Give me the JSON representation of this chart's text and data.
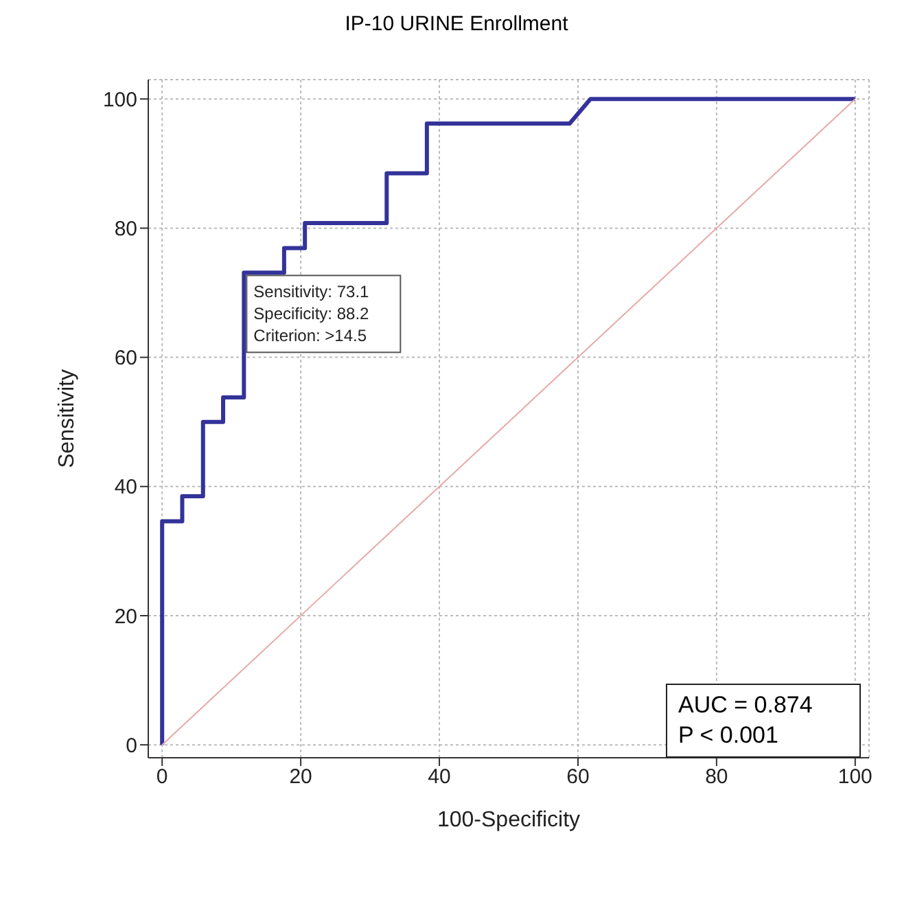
{
  "chart_data": {
    "type": "line",
    "title": "IP-10 URINE Enrollment",
    "xlabel": "100-Specificity",
    "ylabel": "Sensitivity",
    "xlim": [
      -2,
      102
    ],
    "ylim": [
      -2,
      103
    ],
    "xticks": [
      0,
      20,
      40,
      60,
      80,
      100
    ],
    "yticks": [
      0,
      20,
      40,
      60,
      80,
      100
    ],
    "grid": true,
    "legend": false,
    "marker": "none",
    "line_style": "solid",
    "series": [
      {
        "color": "#33339a",
        "x": [
          0,
          0,
          2.9,
          2.9,
          5.9,
          5.9,
          8.8,
          8.8,
          11.8,
          11.8,
          17.6,
          17.6,
          20.6,
          20.6,
          32.4,
          32.4,
          38.2,
          38.2,
          58.8,
          61.8,
          100
        ],
        "values": [
          0,
          34.6,
          34.6,
          38.5,
          38.5,
          50,
          50,
          53.8,
          53.8,
          73.1,
          73.1,
          76.9,
          76.9,
          80.8,
          80.8,
          88.5,
          88.5,
          96.2,
          96.2,
          100,
          100
        ]
      },
      {
        "color": "#e8a8a8",
        "x": [
          0,
          100
        ],
        "values": [
          0,
          100
        ]
      }
    ],
    "annotations": [
      {
        "text": "Sensitivity: 73.1\nSpecificity: 88.2\nCriterion: >14.5",
        "x": 11.8,
        "y": 73.1
      },
      "AUC = 0.874",
      "P < 0.001"
    ]
  }
}
